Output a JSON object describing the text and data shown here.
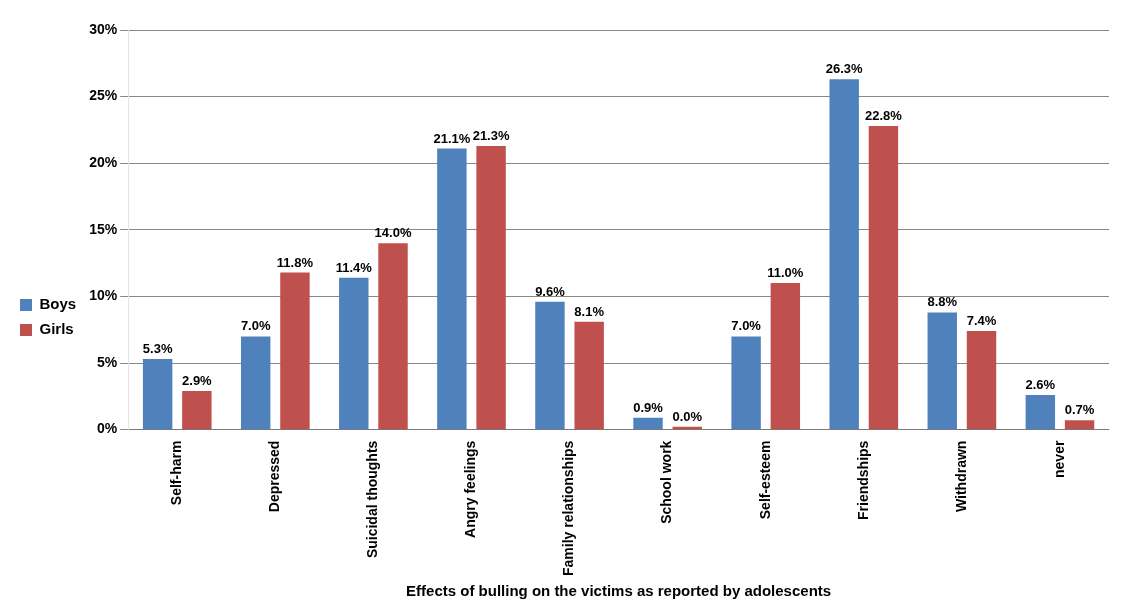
{
  "chart_data": {
    "type": "bar",
    "xlabel": "Effects of bulling on the victims as reported by adolescents",
    "categories": [
      "Self-harm",
      "Depressed",
      "Suicidal thoughts",
      "Angry feelings",
      "Family relationships",
      "School work",
      "Self-esteem",
      "Friendships",
      "Withdrawn",
      "never"
    ],
    "series": [
      {
        "name": "Boys",
        "color": "#4f81bd",
        "values": [
          5.3,
          7.0,
          11.4,
          21.1,
          9.6,
          0.9,
          7.0,
          26.3,
          8.8,
          2.6
        ],
        "value_labels": [
          "5.3%",
          "7.0%",
          "11.4%",
          "21.1%",
          "9.6%",
          "0.9%",
          "7.0%",
          "26.3%",
          "8.8%",
          "2.6%"
        ]
      },
      {
        "name": "Girls",
        "color": "#c0504d",
        "values": [
          2.9,
          11.8,
          14.0,
          21.3,
          8.1,
          0.0,
          11.0,
          22.8,
          7.4,
          0.7
        ],
        "value_labels": [
          "2.9%",
          "11.8%",
          "14.0%",
          "21.3%",
          "8.1%",
          "0.0%",
          "11.0%",
          "22.8%",
          "7.4%",
          "0.7%"
        ]
      }
    ],
    "ylim": [
      0,
      30
    ],
    "yticks": [
      {
        "value": 0,
        "label": "0%"
      },
      {
        "value": 5,
        "label": "5%"
      },
      {
        "value": 10,
        "label": "10%"
      },
      {
        "value": 15,
        "label": "15%"
      },
      {
        "value": 20,
        "label": "20%"
      },
      {
        "value": 25,
        "label": "25%"
      },
      {
        "value": 30,
        "label": "30%"
      }
    ],
    "grid": "y",
    "legend": "left"
  }
}
